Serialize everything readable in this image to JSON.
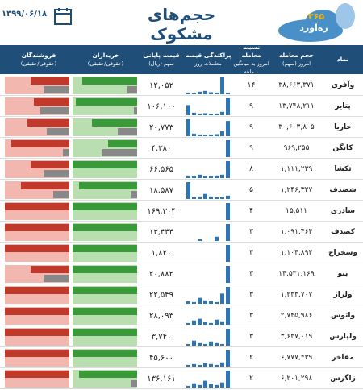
{
  "header": {
    "title": "حجم‌های مشکوک",
    "date": "۱۳۹۹/۰۶/۱۸",
    "logo_number": "۳۶۵",
    "logo_name": "ره‌آورد"
  },
  "table": {
    "columns": [
      {
        "lines": [
          "نماد"
        ]
      },
      {
        "lines": [
          "حجم معامله",
          "امروز (سهم)"
        ]
      },
      {
        "lines": [
          "نسبت معامله",
          "امروز به میانگین",
          "۱ ماهه"
        ]
      },
      {
        "lines": [
          "پراکندگی قیمت",
          "معاملات روز"
        ]
      },
      {
        "lines": [
          "قیمت پایانی",
          "سهم (ریال)"
        ]
      },
      {
        "lines": [
          "خریداران",
          "(حقوقی/حقیقی)"
        ]
      },
      {
        "lines": [
          "فروشندگان",
          "(حقوقی/حقیقی)"
        ]
      }
    ],
    "rows": [
      {
        "symbol": "وآفری",
        "volume": "۳۸,۶۶۳,۳۷۱",
        "ratio": "۱۴",
        "price": "۱۲,۰۵۲",
        "dispersion": [
          10,
          8,
          15,
          20,
          12,
          10,
          100,
          10
        ],
        "buyers": [
          85,
          15
        ],
        "sellers": [
          60,
          40
        ]
      },
      {
        "symbol": "پتایر",
        "volume": "۱۳,۷۴۸,۲۱۱",
        "ratio": "۹",
        "price": "۱۰۶,۱۰۰",
        "dispersion": [
          60,
          15,
          10,
          12,
          8,
          10,
          20,
          100
        ],
        "buyers": [
          95,
          5
        ],
        "sellers": [
          55,
          45
        ]
      },
      {
        "symbol": "حاریا",
        "volume": "۳۰,۶۰۳,۸۰۵",
        "ratio": "۹",
        "price": "۲۰,۷۷۳",
        "dispersion": [
          100,
          15,
          10,
          8,
          10,
          12,
          30,
          90
        ],
        "buyers": [
          70,
          30
        ],
        "sellers": [
          65,
          35
        ]
      },
      {
        "symbol": "کابگن",
        "volume": "۹۶۹,۲۵۵",
        "ratio": "۹",
        "price": "۴,۳۸۰",
        "dispersion": [
          0,
          0,
          0,
          0,
          0,
          0,
          0,
          100
        ],
        "buyers": [
          45,
          55
        ],
        "sellers": [
          90,
          10
        ]
      },
      {
        "symbol": "تکشا",
        "volume": "۱,۱۱۱,۲۳۹",
        "ratio": "۸",
        "price": "۶۶,۵۶۵",
        "dispersion": [
          15,
          10,
          20,
          12,
          10,
          15,
          20,
          100
        ],
        "buyers": [
          100,
          0
        ],
        "sellers": [
          60,
          40
        ]
      },
      {
        "symbol": "شصدف",
        "volume": "۱,۲۴۶,۳۲۷",
        "ratio": "۵",
        "price": "۱۸,۵۸۷",
        "dispersion": [
          100,
          10,
          15,
          30,
          15,
          10,
          12,
          20
        ],
        "buyers": [
          90,
          10
        ],
        "sellers": [
          75,
          25
        ]
      },
      {
        "symbol": "ساذری",
        "volume": "۱۵,۵۱۱",
        "ratio": "۴",
        "price": "۱۶۹,۳۰۴",
        "dispersion": [
          0,
          0,
          0,
          0,
          0,
          0,
          0,
          100
        ],
        "buyers": [
          100,
          0
        ],
        "sellers": [
          100,
          0
        ]
      },
      {
        "symbol": "کصدف",
        "volume": "۱,۰۹۱,۴۶۴",
        "ratio": "۳",
        "price": "۱۳,۴۴۴",
        "dispersion": [
          0,
          0,
          10,
          0,
          0,
          25,
          0,
          100
        ],
        "buyers": [
          100,
          0
        ],
        "sellers": [
          100,
          0
        ]
      },
      {
        "symbol": "وسخراج",
        "volume": "۱,۱۰۴,۸۹۳",
        "ratio": "۳",
        "price": "۱,۸۲۰",
        "dispersion": [
          0,
          0,
          0,
          0,
          0,
          0,
          0,
          100
        ],
        "buyers": [
          100,
          0
        ],
        "sellers": [
          100,
          0
        ]
      },
      {
        "symbol": "بنو",
        "volume": "۱۴,۵۳۱,۱۶۹",
        "ratio": "۳",
        "price": "۲۰,۸۸۲",
        "dispersion": [
          0,
          0,
          0,
          0,
          0,
          0,
          0,
          100
        ],
        "buyers": [
          100,
          0
        ],
        "sellers": [
          60,
          40
        ]
      },
      {
        "symbol": "ولراز",
        "volume": "۱,۲۳۳,۷۰۷",
        "ratio": "۳",
        "price": "۲۲,۵۴۹",
        "dispersion": [
          15,
          10,
          35,
          20,
          15,
          10,
          60,
          100
        ],
        "buyers": [
          100,
          0
        ],
        "sellers": [
          100,
          0
        ]
      },
      {
        "symbol": "واتوس",
        "volume": "۲,۷۴۵,۹۸۶",
        "ratio": "۳",
        "price": "۲۸,۰۹۳",
        "dispersion": [
          10,
          25,
          35,
          15,
          10,
          30,
          20,
          100
        ],
        "buyers": [
          100,
          0
        ],
        "sellers": [
          100,
          0
        ]
      },
      {
        "symbol": "ولپارس",
        "volume": "۳,۶۳۷,۰۱۹",
        "ratio": "۳",
        "price": "۳,۷۴۰",
        "dispersion": [
          10,
          30,
          15,
          10,
          25,
          15,
          10,
          100
        ],
        "buyers": [
          100,
          0
        ],
        "sellers": [
          100,
          0
        ]
      },
      {
        "symbol": "مفاخر",
        "volume": "۶,۷۷۷,۴۳۹",
        "ratio": "۲",
        "price": "۴۵,۶۰۰",
        "dispersion": [
          10,
          15,
          10,
          20,
          15,
          10,
          25,
          100
        ],
        "buyers": [
          100,
          0
        ],
        "sellers": [
          100,
          0
        ]
      },
      {
        "symbol": "زاگرس",
        "volume": "۶,۲۰۱,۲۹۸",
        "ratio": "۲",
        "price": "۱۳۶,۱۶۱",
        "dispersion": [
          10,
          25,
          15,
          40,
          20,
          15,
          30,
          100
        ],
        "buyers": [
          90,
          10
        ],
        "sellers": [
          100,
          0
        ]
      }
    ]
  }
}
